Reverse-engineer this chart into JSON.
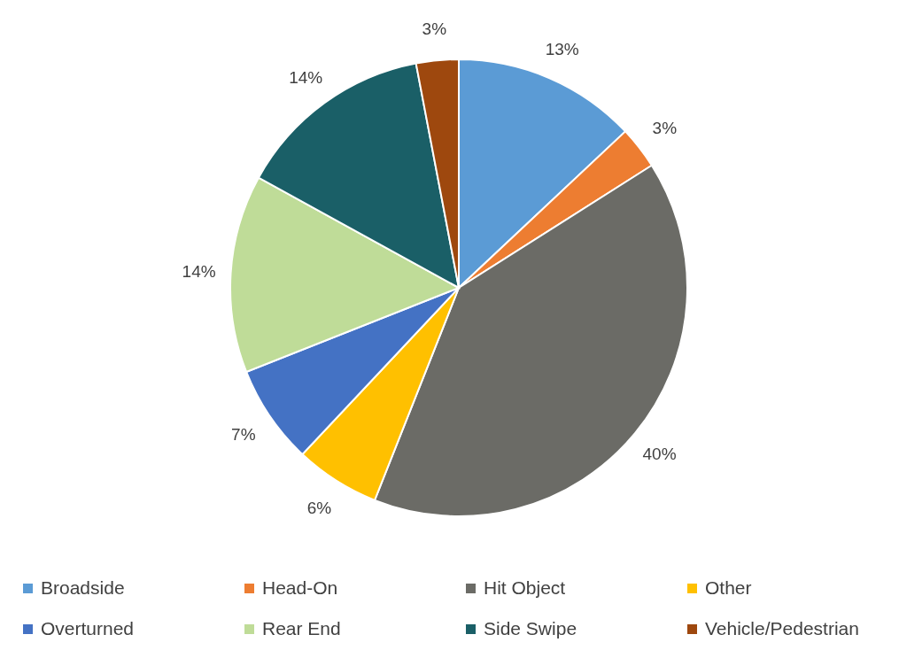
{
  "chart_data": {
    "type": "pie",
    "categories": [
      "Broadside",
      "Head-On",
      "Hit Object",
      "Other",
      "Overturned",
      "Rear End",
      "Side Swipe",
      "Vehicle/Pedestrian"
    ],
    "values": [
      13,
      3,
      40,
      6,
      7,
      14,
      14,
      3
    ],
    "colors": [
      "#5b9bd5",
      "#ed7d31",
      "#6b6b66",
      "#ffc000",
      "#4472c4",
      "#bfdc98",
      "#1a5f67",
      "#9e480e"
    ],
    "value_labels": [
      "13%",
      "3%",
      "40%",
      "6%",
      "7%",
      "14%",
      "14%",
      "3%"
    ],
    "legend": "bottom"
  }
}
